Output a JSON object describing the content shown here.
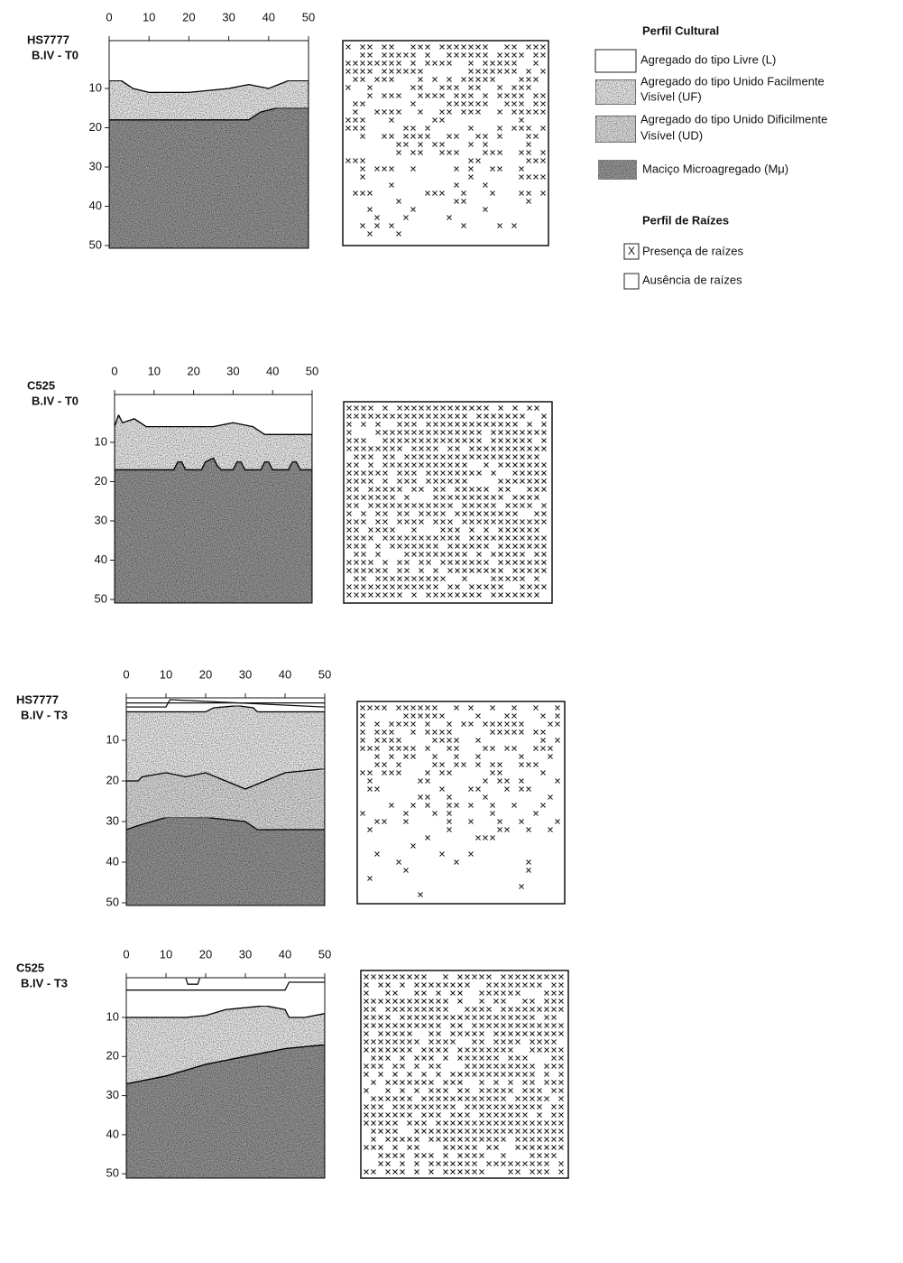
{
  "panels": [
    {
      "sample": "HS7777",
      "treatment": "B.IV - T0",
      "x_ticks": [
        0,
        10,
        20,
        30,
        40,
        50
      ],
      "y_ticks": [
        10,
        20,
        30,
        40,
        50
      ]
    },
    {
      "sample": "C525",
      "treatment": "B.IV - T0",
      "x_ticks": [
        0,
        10,
        20,
        30,
        40,
        50
      ],
      "y_ticks": [
        10,
        20,
        30,
        40,
        50
      ]
    },
    {
      "sample": "HS7777",
      "treatment": "B.IV - T3",
      "x_ticks": [
        0,
        10,
        20,
        30,
        40,
        50
      ],
      "y_ticks": [
        10,
        20,
        30,
        40,
        50
      ]
    },
    {
      "sample": "C525",
      "treatment": "B.IV - T3",
      "x_ticks": [
        0,
        10,
        20,
        30,
        40,
        50
      ],
      "y_ticks": [
        10,
        20,
        30,
        40,
        50
      ]
    }
  ],
  "legend": {
    "cultural_title": "Perfil Cultural",
    "cultural_items": [
      {
        "lines": [
          "Agregado do tipo Livre (L)"
        ]
      },
      {
        "lines": [
          "Agregado do tipo Unido Facilmente",
          "Visível (UF)"
        ]
      },
      {
        "lines": [
          "Agregado do tipo Unido Dificilmente",
          "Visível (UD)"
        ]
      },
      {
        "lines": [
          "Maciço Microagregado (Mμ)"
        ]
      }
    ],
    "roots_title": "Perfil de Raízes",
    "roots_items": [
      {
        "symbol": "X",
        "label": "Presença de raízes"
      },
      {
        "label": "Ausência de raízes"
      }
    ]
  }
}
